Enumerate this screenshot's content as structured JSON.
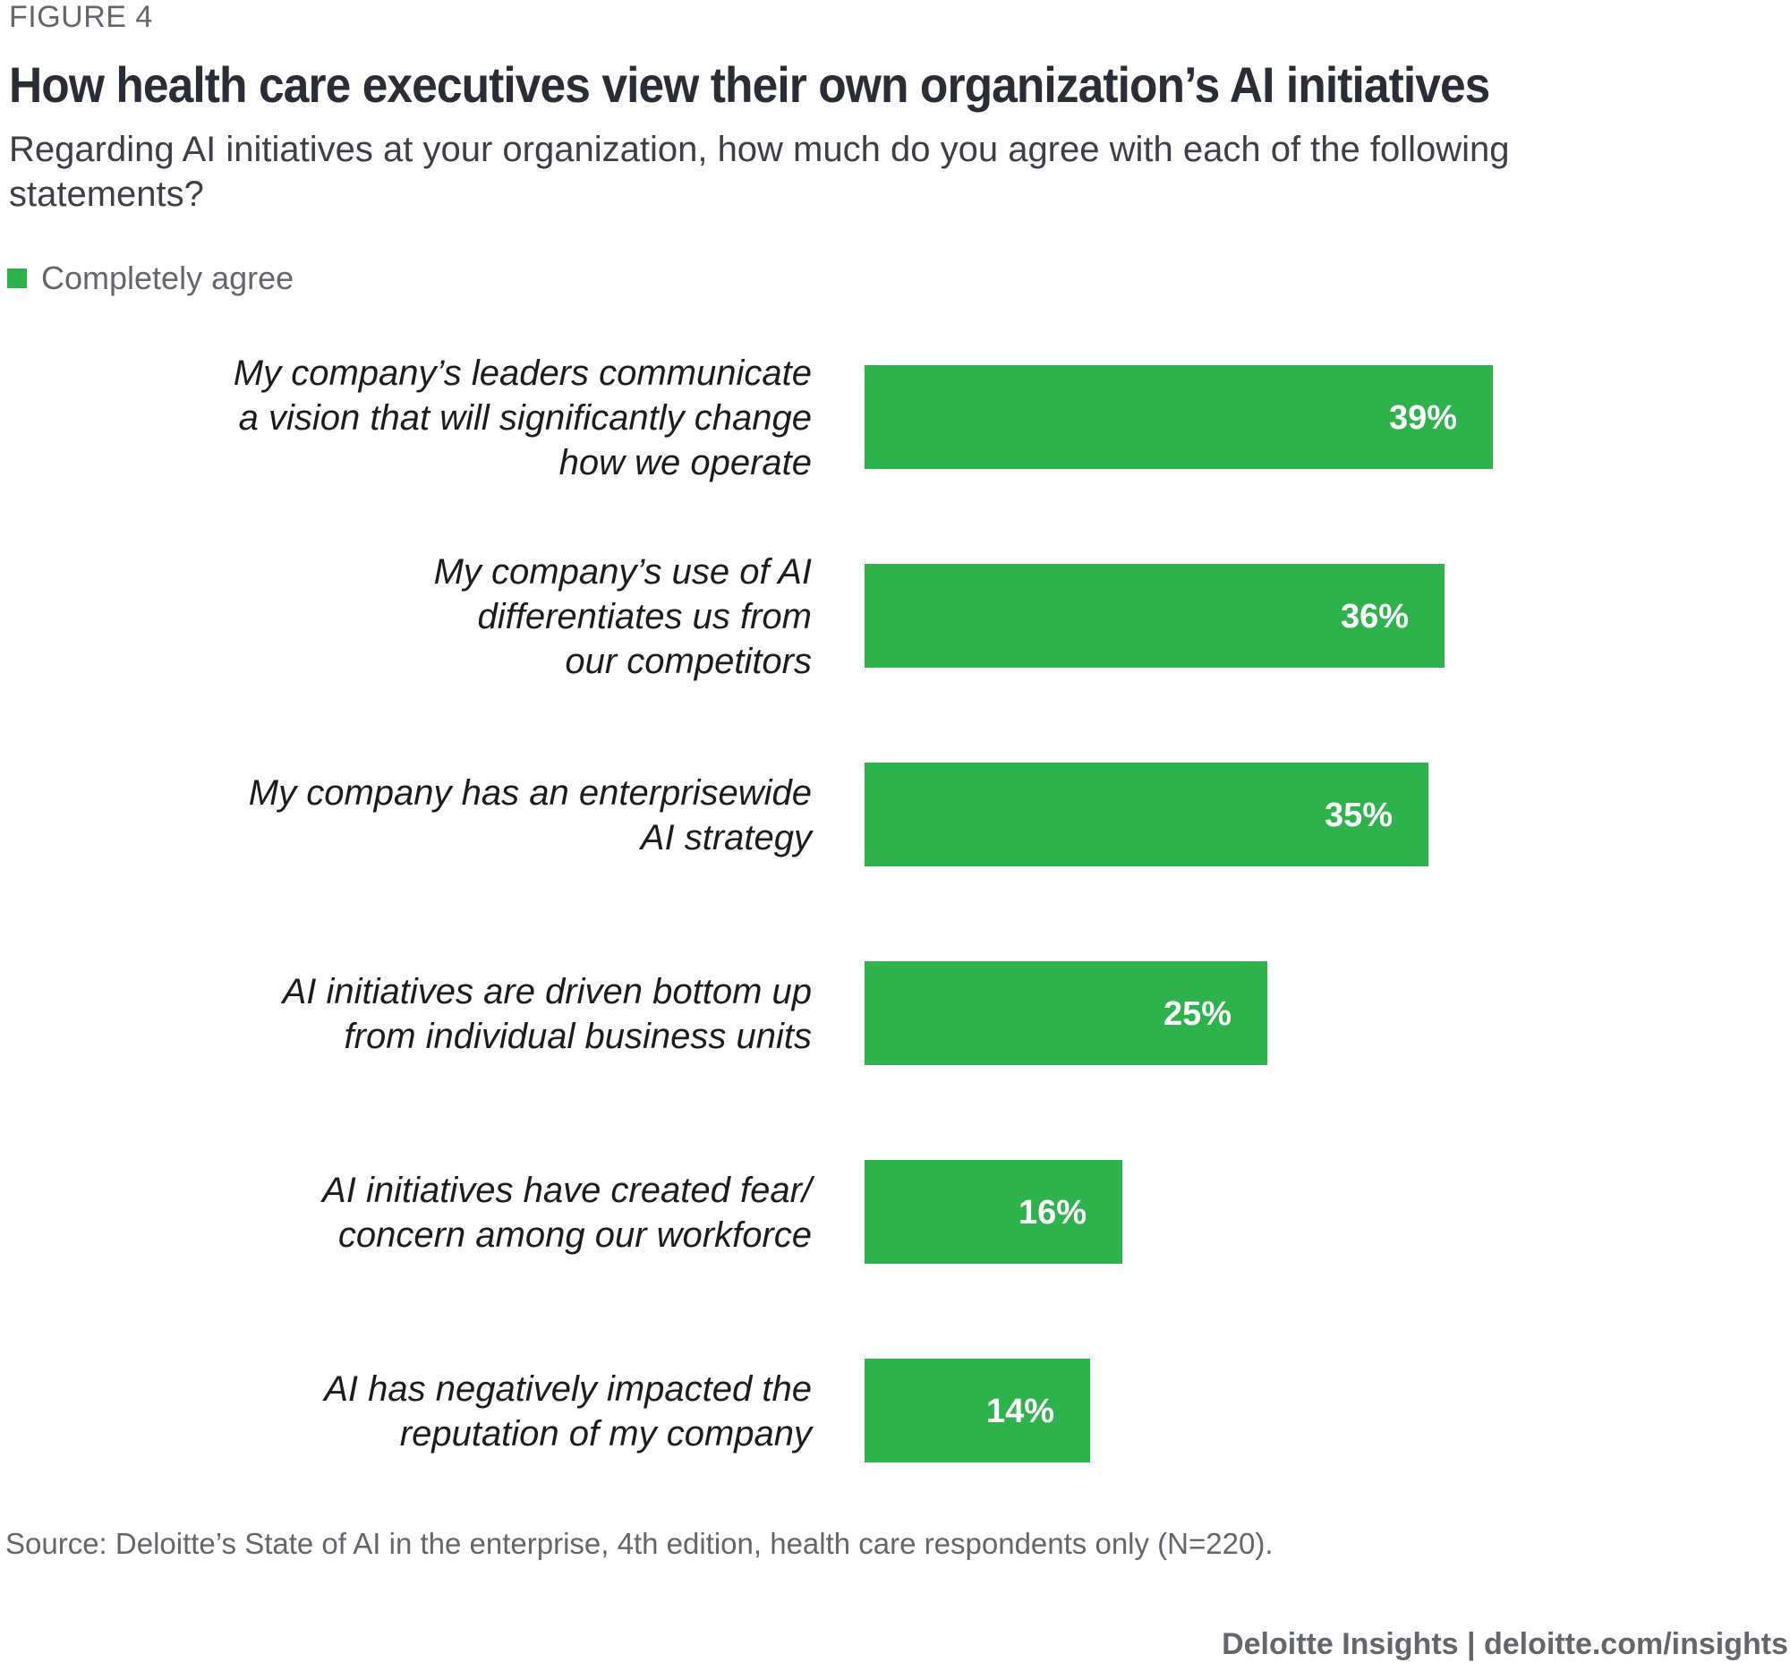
{
  "figure_label": "FIGURE 4",
  "title": "How health care executives view their own organization’s AI initiatives",
  "subtitle": "Regarding AI initiatives at your organization, how much do you agree with each of the following statements?",
  "legend": {
    "label": "Completely agree",
    "color": "#2eb24b"
  },
  "source": "Source: Deloitte’s State of AI in the enterprise, 4th edition, health care respondents only (N=220).",
  "footer": "Deloitte Insights | deloitte.com/insights",
  "chart_data": {
    "type": "bar",
    "orientation": "horizontal",
    "title": "How health care executives view their own organization’s AI initiatives",
    "xlabel": "",
    "ylabel": "",
    "xlim": [
      0,
      39
    ],
    "grid": false,
    "legend_position": "top-left",
    "bar_color": "#2eb24b",
    "categories": [
      [
        "My company’s leaders communicate",
        "a vision that will significantly change",
        "how we operate"
      ],
      [
        "My company’s use of AI",
        "differentiates us from",
        "our competitors"
      ],
      [
        "My company has an enterprisewide",
        "AI strategy"
      ],
      [
        "AI initiatives are driven bottom up",
        "from individual business units"
      ],
      [
        "AI initiatives have created fear/",
        "concern among our workforce"
      ],
      [
        "AI has negatively impacted the",
        "reputation of my company"
      ]
    ],
    "series": [
      {
        "name": "Completely agree",
        "values": [
          39,
          36,
          35,
          25,
          16,
          14
        ],
        "labels": [
          "39%",
          "36%",
          "35%",
          "25%",
          "16%",
          "14%"
        ]
      }
    ]
  }
}
